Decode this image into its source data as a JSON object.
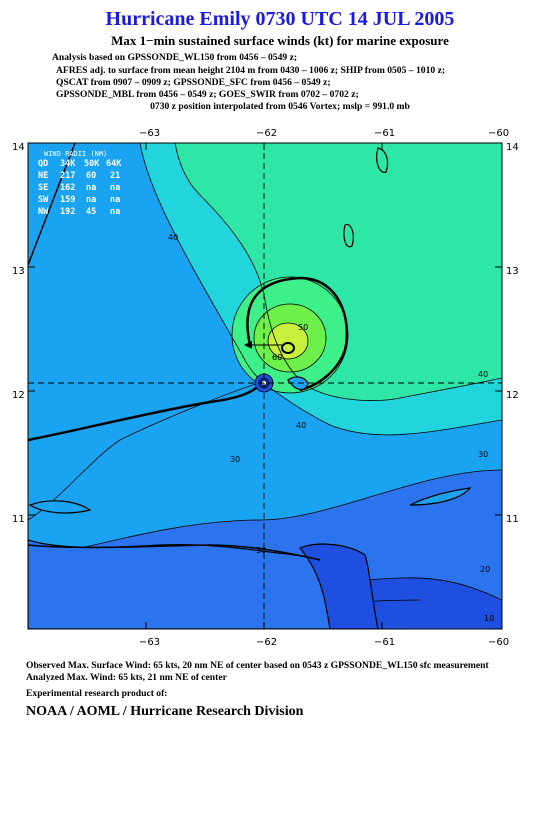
{
  "title": "Hurricane Emily 0730 UTC 14 JUL 2005",
  "subtitle": "Max 1−min sustained surface winds (kt) for marine exposure",
  "analysis_lines": [
    "Analysis based on  GPSSONDE_WL150 from 0456 – 0549 z;",
    "AFRES adj. to surface from mean height 2104 m from 0430 – 1006 z;  SHIP from 0505 – 1010 z;",
    "QSCAT from 0907 – 0909 z;  GPSSONDE_SFC from 0456 – 0549 z;",
    "GPSSONDE_MBL from 0456 – 0549 z;  GOES_SWIR from 0702 – 0702 z;",
    "0730 z position interpolated from 0546 Vortex; mslp = 991.0 mb"
  ],
  "map": {
    "lon_ticks": [
      "−63",
      "−62",
      "−61",
      "−60"
    ],
    "lat_ticks": [
      "14",
      "13",
      "12",
      "11"
    ],
    "center": {
      "lon": -62.0,
      "lat": 12.08
    },
    "wind_radii": {
      "header": "WIND RADII (NM)",
      "columns": [
        "QD",
        "34K",
        "50K",
        "64K"
      ],
      "rows": [
        [
          "NE",
          "217",
          "60",
          "21"
        ],
        [
          "SE",
          "162",
          "na",
          "na"
        ],
        [
          "SW",
          "159",
          "na",
          "na"
        ],
        [
          "NW",
          "192",
          "45",
          "na"
        ]
      ]
    },
    "contour_labels": [
      "40",
      "30",
      "50",
      "60",
      "40",
      "40",
      "30",
      "30",
      "20",
      "10"
    ],
    "colors": {
      "wind_10": "#1f4fe0",
      "wind_20": "#2b74ee",
      "wind_30": "#1aa3f0",
      "wind_40": "#22d4dc",
      "wind_50": "#2ee6a6",
      "wind_60": "#6df04a",
      "wind_65": "#c8f03c"
    }
  },
  "footer": {
    "observed": "Observed Max. Surface Wind: 65 kts, 20 nm NE of center based on 0543 z GPSSONDE_WL150 sfc measurement",
    "analyzed": "Analyzed Max. Wind: 65 kts, 21 nm NE of center",
    "experimental": "Experimental research product of:",
    "org": "NOAA / AOML / Hurricane Research Division"
  }
}
